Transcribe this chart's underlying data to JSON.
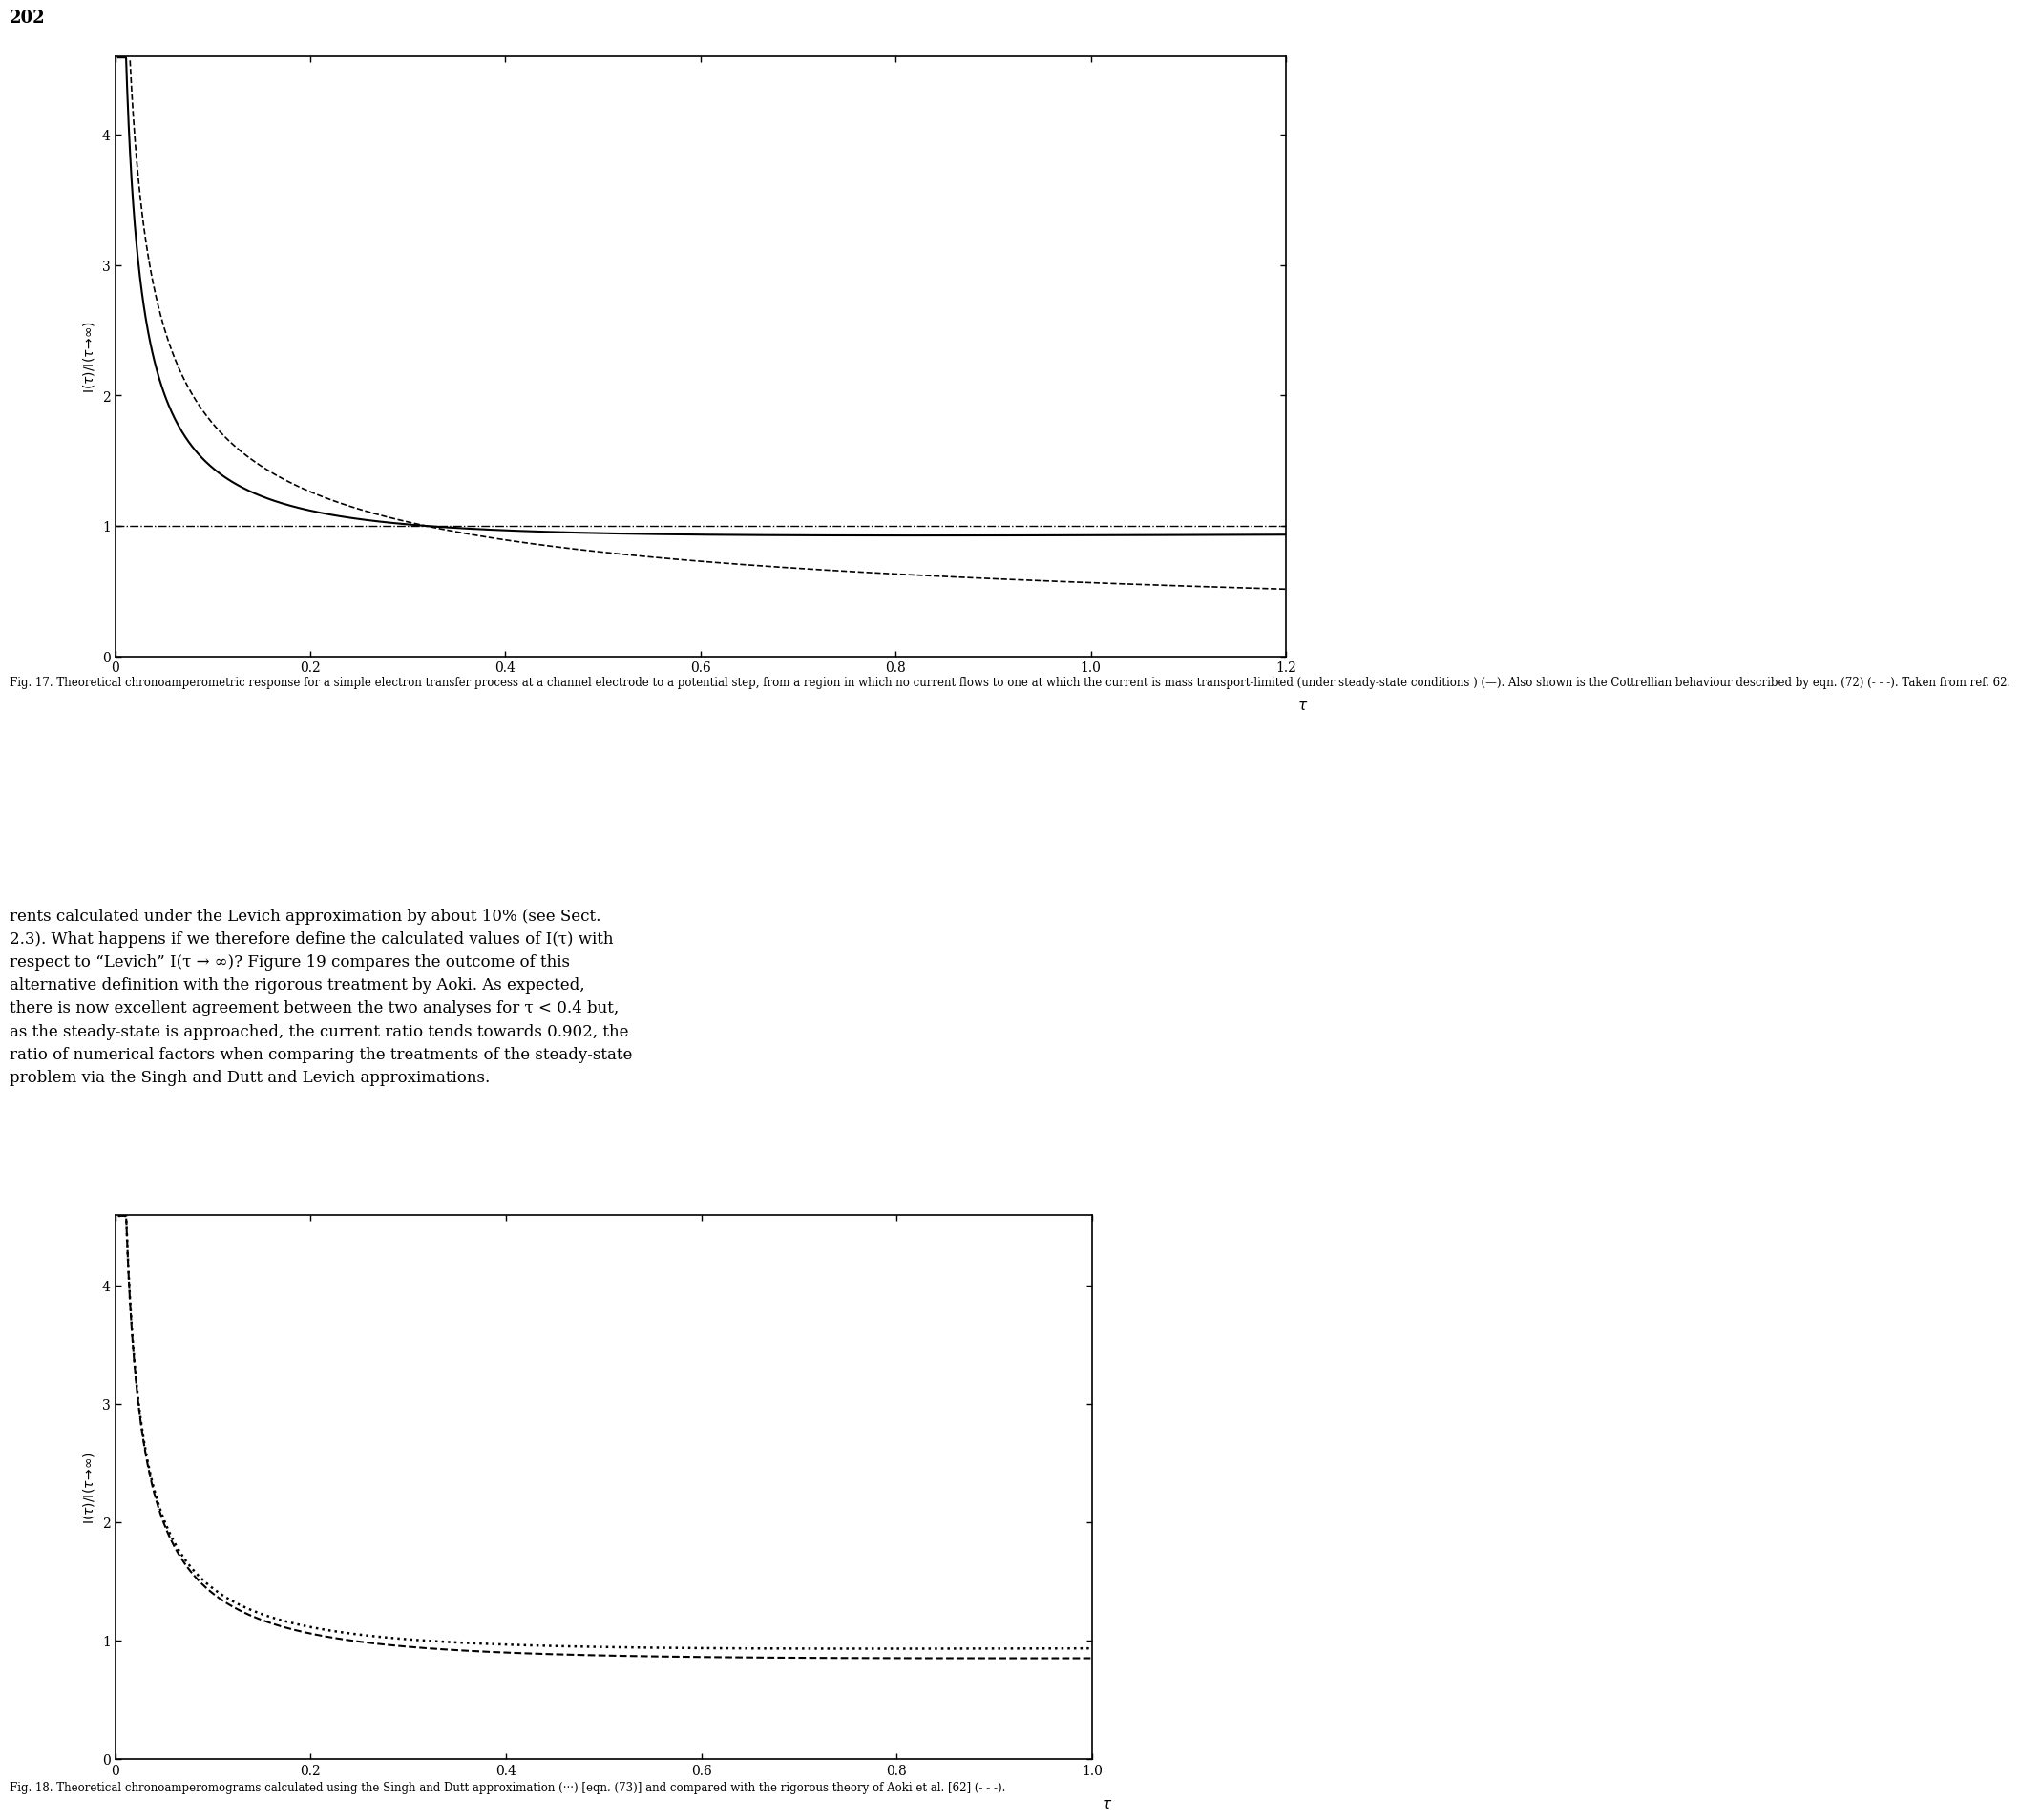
{
  "page_number": "202",
  "fig17": {
    "xlim": [
      0,
      1.2
    ],
    "ylim": [
      0,
      4.6
    ],
    "xticks": [
      0,
      0.2,
      0.4,
      0.6,
      0.8,
      1.0,
      1.2
    ],
    "yticks": [
      0,
      1,
      2,
      3,
      4
    ],
    "xtick_labels": [
      "0",
      "0.2",
      "0.4",
      "0.6",
      "0.8",
      "1.0",
      "1.2"
    ],
    "ytick_labels": [
      "0",
      "1",
      "2",
      "3",
      "4"
    ],
    "caption": "Fig. 17. Theoretical chronoamperometric response for a simple electron transfer process at a channel electrode to a potential step, from a region in which no current flows to one at which the current is mass transport-limited (under steady-state conditions ) (—). Also shown is the Cottrellian behaviour described by eqn. (72) (- - -). Taken from ref. 62."
  },
  "fig18": {
    "xlim": [
      0,
      1.0
    ],
    "ylim": [
      0,
      4.6
    ],
    "xticks": [
      0,
      0.2,
      0.4,
      0.6,
      0.8,
      1.0
    ],
    "yticks": [
      0,
      1,
      2,
      3,
      4
    ],
    "xtick_labels": [
      "0",
      "0.2",
      "0.4",
      "0.6",
      "0.8",
      "1.0"
    ],
    "ytick_labels": [
      "0",
      "1",
      "2",
      "3",
      "4"
    ],
    "caption": "Fig. 18. Theoretical chronoamperomograms calculated using the Singh and Dutt approximation (···) [eqn. (73)] and compared with the rigorous theory of Aoki et al. [62] (- - -)."
  },
  "body_text_line1": "rents calculated under the Levich approximation by about 10% (see Sect.",
  "body_text_line2": "2.3). What happens if we therefore define the calculated values of I(τ) with",
  "body_text_line3": "respect to “Levich” I(τ → ∞)? Figure 19 compares the outcome of this",
  "body_text_line4": "alternative definition with the rigorous treatment by Aoki. As expected,",
  "body_text_line5": "there is now excellent agreement between the two analyses for τ < 0.4 but,",
  "body_text_line6": "as the steady-state is approached, the current ratio tends towards 0.902, the",
  "body_text_line7": "ratio of numerical factors when comparing the treatments of the steady-state",
  "body_text_line8": "problem via the Singh and Dutt and Levich approximations."
}
